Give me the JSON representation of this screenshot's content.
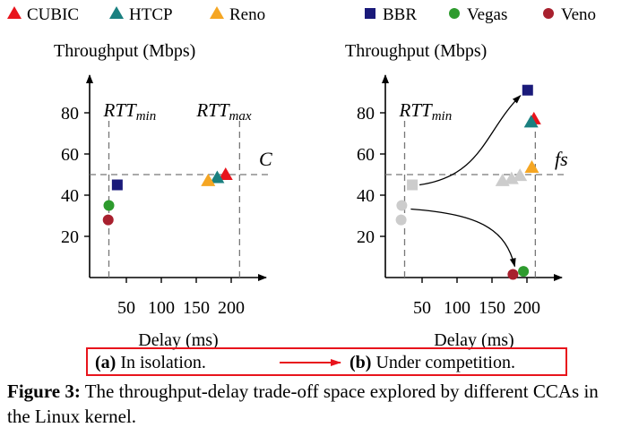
{
  "legend": [
    {
      "name": "CUBIC",
      "marker": "triangle",
      "color": "#e8141c"
    },
    {
      "name": "HTCP",
      "marker": "triangle",
      "color": "#1a8080"
    },
    {
      "name": "Reno",
      "marker": "triangle",
      "color": "#f5a623"
    },
    {
      "name": "BBR",
      "marker": "square",
      "color": "#1a1a7a"
    },
    {
      "name": "Vegas",
      "marker": "circle",
      "color": "#2e9b2e"
    },
    {
      "name": "Veno",
      "marker": "circle",
      "color": "#a8202e"
    }
  ],
  "panels": {
    "a_label": "(a)",
    "a_text": "In isolation.",
    "b_label": "(b)",
    "b_text": "Under competition."
  },
  "caption": {
    "label": "Figure 3:",
    "text": "The throughput-delay trade-off space explored by different CCAs in the Linux kernel."
  },
  "chart_data": [
    {
      "type": "scatter",
      "panel": "a",
      "title": "",
      "xlabel": "Delay (ms)",
      "ylabel": "Throughput (Mbps)",
      "xticks": [
        50,
        100,
        150,
        200
      ],
      "yticks": [
        20,
        40,
        60,
        80
      ],
      "xlim": [
        0,
        240
      ],
      "ylim": [
        0,
        100
      ],
      "ref_lines": [
        {
          "axis": "x",
          "value": 25,
          "label": "RTT",
          "sub": "min"
        },
        {
          "axis": "x",
          "value": 212,
          "label": "RTT",
          "sub": "max"
        },
        {
          "axis": "y",
          "value": 50,
          "label": "C"
        }
      ],
      "series": [
        {
          "name": "CUBIC",
          "points": [
            [
              192,
              50
            ]
          ]
        },
        {
          "name": "HTCP",
          "points": [
            [
              180,
              48.5
            ]
          ]
        },
        {
          "name": "Reno",
          "points": [
            [
              167,
              47
            ]
          ]
        },
        {
          "name": "BBR",
          "points": [
            [
              37,
              45
            ]
          ]
        },
        {
          "name": "Vegas",
          "points": [
            [
              25,
              35
            ]
          ]
        },
        {
          "name": "Veno",
          "points": [
            [
              24,
              28
            ]
          ]
        }
      ]
    },
    {
      "type": "scatter",
      "panel": "b",
      "title": "",
      "xlabel": "Delay (ms)",
      "ylabel": "Throughput (Mbps)",
      "xticks": [
        50,
        100,
        150,
        200
      ],
      "yticks": [
        20,
        40,
        60,
        80
      ],
      "xlim": [
        0,
        240
      ],
      "ylim": [
        0,
        100
      ],
      "ref_lines": [
        {
          "axis": "x",
          "value": 25,
          "label": "RTT",
          "sub": "min"
        },
        {
          "axis": "x",
          "value": 212,
          "label": "",
          "sub": ""
        },
        {
          "axis": "y",
          "value": 50,
          "label": "fs"
        }
      ],
      "ghost_points": [
        [
          36,
          45
        ],
        [
          165,
          47
        ],
        [
          178,
          48
        ],
        [
          190,
          49.5
        ],
        [
          21,
          35
        ],
        [
          20,
          28
        ]
      ],
      "series": [
        {
          "name": "CUBIC",
          "points": [
            [
              210,
              77
            ]
          ]
        },
        {
          "name": "HTCP",
          "points": [
            [
              206,
              75.5
            ]
          ]
        },
        {
          "name": "Reno",
          "points": [
            [
              207,
              53.5
            ]
          ]
        },
        {
          "name": "BBR",
          "points": [
            [
              201,
              91
            ]
          ]
        },
        {
          "name": "Vegas",
          "points": [
            [
              195,
              3
            ]
          ]
        },
        {
          "name": "Veno",
          "points": [
            [
              180,
              1.5
            ]
          ]
        }
      ]
    }
  ]
}
